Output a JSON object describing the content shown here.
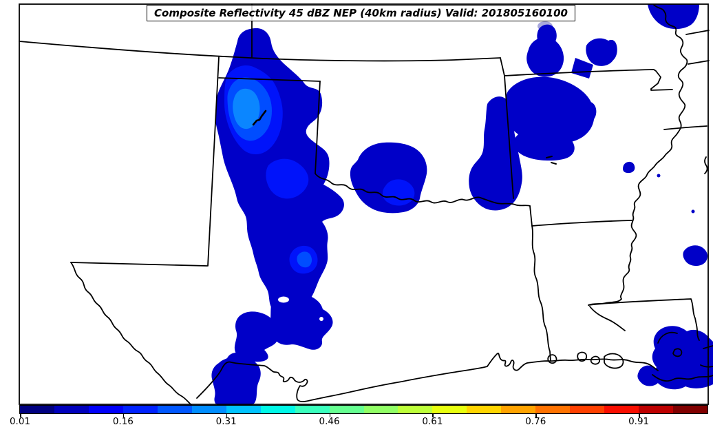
{
  "figure": {
    "title": "Composite Reflectivity 45 dBZ NEP (40km radius) Valid: 201805160100"
  },
  "colorbar": {
    "range": [
      0.01,
      1.01
    ],
    "tick_labels": [
      "0.01",
      "0.16",
      "0.31",
      "0.46",
      "0.61",
      "0.76",
      "0.91"
    ],
    "tick_values": [
      0.01,
      0.16,
      0.31,
      0.46,
      0.61,
      0.76,
      0.91
    ],
    "segment_colors": [
      "#000080",
      "#0000BC",
      "#0000F9",
      "#0022FF",
      "#0057FF",
      "#008DFF",
      "#00C3FF",
      "#00F8E8",
      "#3AFFBD",
      "#66FF91",
      "#91FF66",
      "#BDFF3A",
      "#E8FF0F",
      "#FFD500",
      "#FFA300",
      "#FF7200",
      "#FF4000",
      "#F90E00",
      "#BD0000",
      "#800000"
    ]
  },
  "map": {
    "background_color": "#ffffff",
    "border_color": "#000000",
    "nep_levels": [
      {
        "class": "nep-l1",
        "color": "#0000C8"
      },
      {
        "class": "nep-l2",
        "color": "#0013FA"
      },
      {
        "class": "nep-l3",
        "color": "#004DFF"
      },
      {
        "class": "nep-l4",
        "color": "#0B86FF"
      },
      {
        "class": "nep-lav",
        "color": "#A8A8DC"
      }
    ]
  }
}
